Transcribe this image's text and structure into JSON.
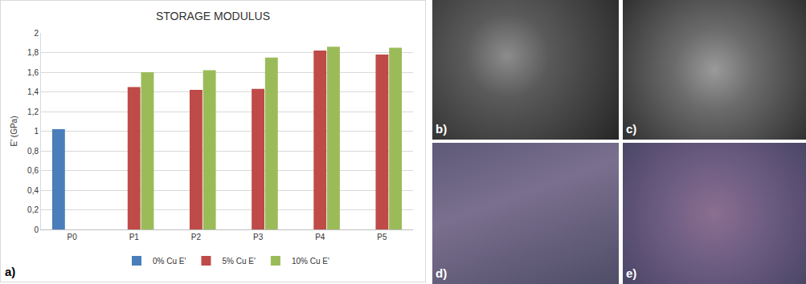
{
  "chart_data": {
    "type": "bar",
    "title": "STORAGE MODULUS",
    "categories": [
      "P0",
      "P1",
      "P2",
      "P3",
      "P4",
      "P5"
    ],
    "series": [
      {
        "name": "0% Cu E'",
        "color": "#4a7ebb",
        "values": [
          1.02,
          null,
          null,
          null,
          null,
          null
        ]
      },
      {
        "name": "5% Cu E'",
        "color": "#be4b48",
        "values": [
          null,
          1.45,
          1.42,
          1.43,
          1.82,
          1.78
        ]
      },
      {
        "name": "10% Cu E'",
        "color": "#9bbb59",
        "values": [
          null,
          1.6,
          1.62,
          1.75,
          1.86,
          1.85
        ]
      }
    ],
    "y_label": "E' (GPa)",
    "ylim": [
      0,
      2
    ],
    "yticks": [
      0,
      {
        "value": 0.2,
        "label": "0,2"
      },
      {
        "value": 0.4,
        "label": "0,4"
      },
      {
        "value": 0.6,
        "label": "0,6"
      },
      {
        "value": 0.8,
        "label": "0,8"
      },
      1,
      {
        "value": 1.2,
        "label": "1,2"
      },
      {
        "value": 1.4,
        "label": "1,4"
      },
      {
        "value": 1.6,
        "label": "1,6"
      },
      {
        "value": 1.8,
        "label": "1,8"
      },
      2
    ],
    "grid": true,
    "legend": "bottom"
  },
  "panel_labels": [
    "a)",
    "b)",
    "c)",
    "d)",
    "e)"
  ]
}
